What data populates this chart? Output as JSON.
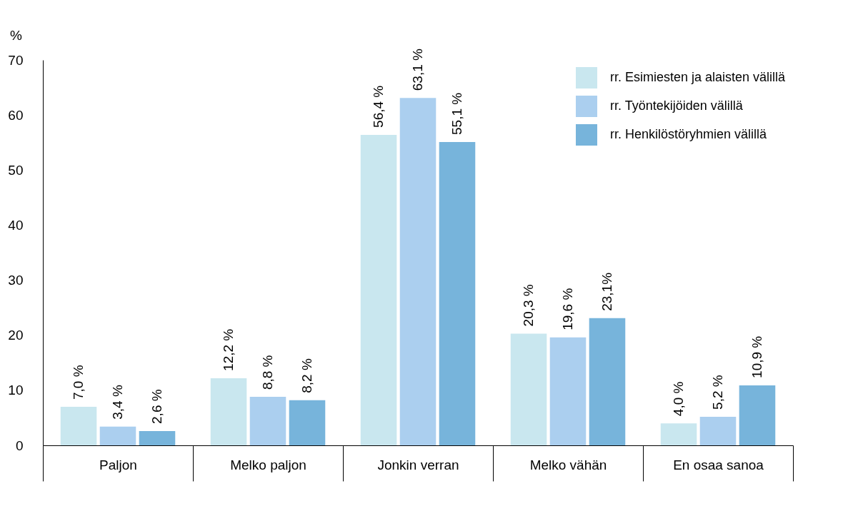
{
  "chart_data": {
    "type": "bar",
    "ylabel": "%",
    "categories": [
      "Paljon",
      "Melko paljon",
      "Jonkin verran",
      "Melko vähän",
      "En osaa sanoa"
    ],
    "series": [
      {
        "name": "rr. Esimiesten ja alaisten välillä",
        "color": "#c9e7ef",
        "values": [
          7.0,
          12.2,
          56.4,
          20.3,
          4.0
        ],
        "value_labels": [
          "7,0 %",
          "12,2 %",
          "56,4 %",
          "20,3 %",
          "4,0 %"
        ]
      },
      {
        "name": "rr. Työntekijöiden välillä",
        "color": "#abcfef",
        "values": [
          3.4,
          8.8,
          63.1,
          19.6,
          5.2
        ],
        "value_labels": [
          "3,4 %",
          "8,8 %",
          "63,1 %",
          "19,6 %",
          "5,2 %"
        ]
      },
      {
        "name": "rr. Henkilöstöryhmien välillä",
        "color": "#77b4db",
        "values": [
          2.6,
          8.2,
          55.1,
          23.1,
          10.9
        ],
        "value_labels": [
          "2,6 %",
          "8,2 %",
          "55,1 %",
          "23,1%",
          "10,9 %"
        ]
      }
    ],
    "ylim": [
      0,
      70
    ],
    "yticks": [
      0,
      10,
      20,
      30,
      40,
      50,
      60,
      70
    ],
    "grid": false,
    "legend": "top right"
  }
}
